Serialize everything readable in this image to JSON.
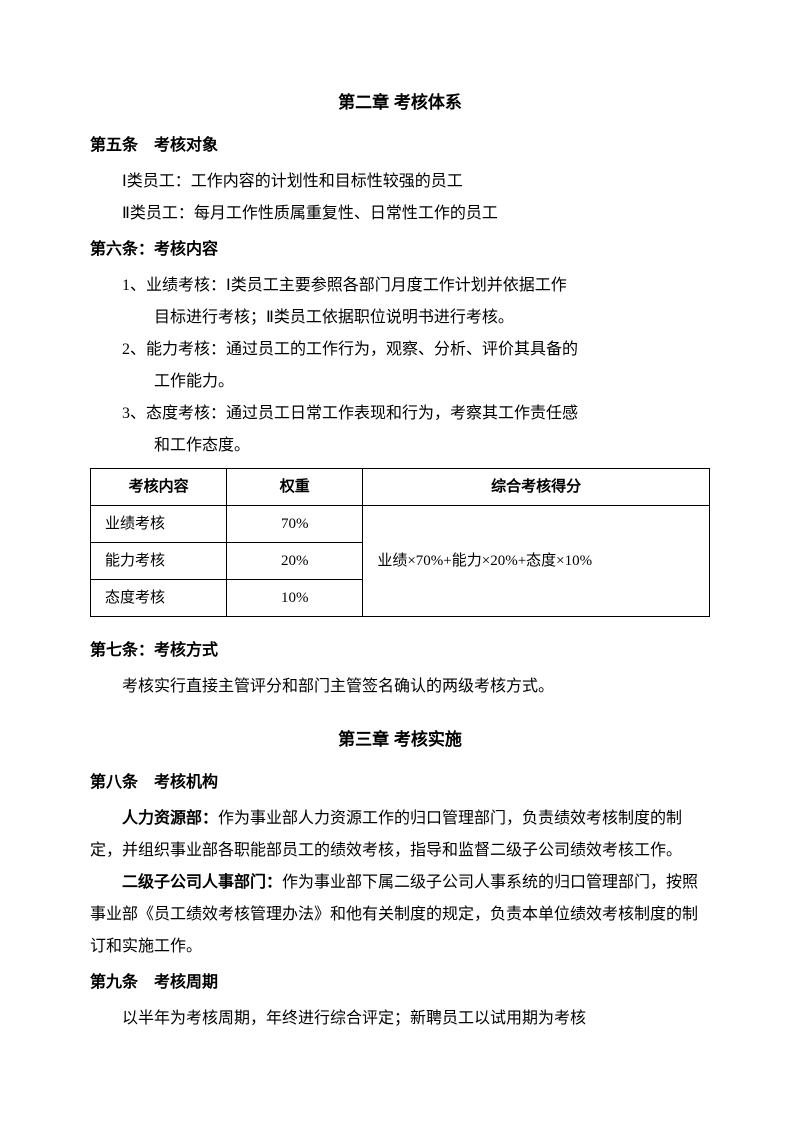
{
  "chapter2": {
    "title": "第二章  考核体系",
    "article5": {
      "heading": "第五条　考核对象",
      "line1": "Ⅰ类员工：工作内容的计划性和目标性较强的员工",
      "line2": "Ⅱ类员工：每月工作性质属重复性、日常性工作的员工"
    },
    "article6": {
      "heading": "第六条：考核内容",
      "item1a": "1、业绩考核：Ⅰ类员工主要参照各部门月度工作计划并依据工作",
      "item1b": "目标进行考核；Ⅱ类员工依据职位说明书进行考核。",
      "item2a": "2、能力考核：通过员工的工作行为，观察、分析、评价其具备的",
      "item2b": "工作能力。",
      "item3a": "3、态度考核：通过员工日常工作表现和行为，考察其工作责任感",
      "item3b": "和工作态度。"
    },
    "table": {
      "col_content": "考核内容",
      "col_weight": "权重",
      "col_score": "综合考核得分",
      "rows": [
        {
          "name": "业绩考核",
          "weight": "70%"
        },
        {
          "name": "能力考核",
          "weight": "20%"
        },
        {
          "name": "态度考核",
          "weight": "10%"
        }
      ],
      "formula": "业绩×70%+能力×20%+态度×10%",
      "col_w1": "22%",
      "col_w2": "22%",
      "col_w3": "56%"
    },
    "article7": {
      "heading": "第七条：考核方式",
      "body": "考核实行直接主管评分和部门主管签名确认的两级考核方式。"
    }
  },
  "chapter3": {
    "title": "第三章  考核实施",
    "article8": {
      "heading": "第八条　考核机构",
      "p1_bold": "人力资源部：",
      "p1_rest": "作为事业部人力资源工作的归口管理部门，负责绩效考核制度的制定，并组织事业部各职能部员工的绩效考核，指导和监督二级子公司绩效考核工作。",
      "p2_bold": "二级子公司人事部门：",
      "p2_rest": "作为事业部下属二级子公司人事系统的归口管理部门，按照事业部《员工绩效考核管理办法》和他有关制度的规定，负责本单位绩效考核制度的制订和实施工作。"
    },
    "article9": {
      "heading": "第九条　考核周期",
      "body": "以半年为考核周期，年终进行综合评定；新聘员工以试用期为考核"
    }
  }
}
